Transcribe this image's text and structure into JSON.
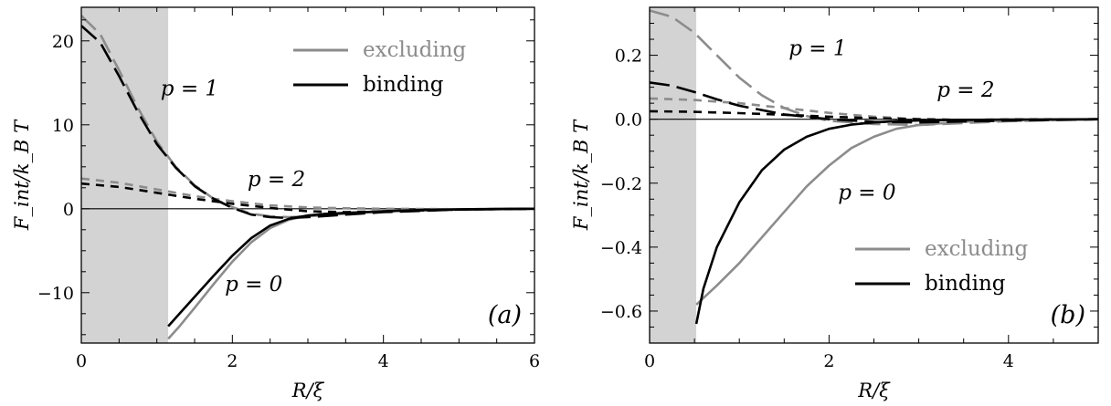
{
  "colors": {
    "excluding": "#8c8c8c",
    "binding": "#000000",
    "shade": "#d3d3d3",
    "axis": "#000000"
  },
  "chart_data": [
    {
      "type": "line",
      "panel_label": "(a)",
      "xlabel": "R/ξ",
      "ylabel": "F_int/k_B T",
      "xlim": [
        0,
        6
      ],
      "ylim": [
        -16,
        24
      ],
      "x_ticks": [
        0,
        2,
        4,
        6
      ],
      "y_ticks": [
        -10,
        0,
        10,
        20
      ],
      "shaded_region_x": [
        0,
        1.15
      ],
      "legend": {
        "position": "top-right",
        "entries": [
          {
            "label": "excluding",
            "color_key": "excluding"
          },
          {
            "label": "binding",
            "color_key": "binding"
          }
        ]
      },
      "annotations": [
        {
          "text": "p = 1",
          "x": 1.05,
          "y": 13.5
        },
        {
          "text": "p = 2",
          "x": 2.2,
          "y": 2.7
        },
        {
          "text": "p = 0",
          "x": 1.9,
          "y": -9.8
        }
      ],
      "series": [
        {
          "group": "excluding",
          "p": 1,
          "dash": "long",
          "x": [
            0,
            0.25,
            0.5,
            0.75,
            1.0,
            1.25,
            1.5,
            1.75,
            2.0,
            2.25,
            2.5,
            2.75,
            3.0,
            3.5,
            4.0,
            5.0,
            6.0
          ],
          "y": [
            23.0,
            20.8,
            16.5,
            12.0,
            8.0,
            5.0,
            2.8,
            1.2,
            0.2,
            -0.6,
            -0.9,
            -1.0,
            -0.9,
            -0.6,
            -0.3,
            -0.1,
            0.0
          ]
        },
        {
          "group": "binding",
          "p": 1,
          "dash": "long",
          "x": [
            0,
            0.25,
            0.5,
            0.75,
            1.0,
            1.25,
            1.5,
            1.75,
            2.0,
            2.25,
            2.5,
            2.75,
            3.0,
            3.5,
            4.0,
            5.0,
            6.0
          ],
          "y": [
            21.8,
            19.8,
            15.8,
            11.5,
            7.7,
            4.9,
            2.7,
            1.2,
            0.1,
            -0.7,
            -1.0,
            -1.1,
            -1.0,
            -0.7,
            -0.4,
            -0.1,
            0.0
          ]
        },
        {
          "group": "excluding",
          "p": 2,
          "dash": "short",
          "x": [
            0,
            0.5,
            1.0,
            1.5,
            2.0,
            2.5,
            3.0,
            3.5,
            4.0,
            5.0,
            6.0
          ],
          "y": [
            3.6,
            3.1,
            2.3,
            1.5,
            0.9,
            0.4,
            0.15,
            0.05,
            0.0,
            -0.05,
            0.0
          ]
        },
        {
          "group": "binding",
          "p": 2,
          "dash": "short",
          "x": [
            0,
            0.5,
            1.0,
            1.5,
            2.0,
            2.5,
            3.0,
            3.5,
            4.0,
            5.0,
            6.0
          ],
          "y": [
            3.0,
            2.6,
            1.9,
            1.2,
            0.6,
            0.1,
            -0.3,
            -0.4,
            -0.3,
            -0.1,
            0.0
          ]
        },
        {
          "group": "excluding",
          "p": 0,
          "dash": "solid",
          "x": [
            1.15,
            1.3,
            1.5,
            1.75,
            2.0,
            2.25,
            2.5,
            2.75,
            3.0,
            3.25,
            3.5,
            4.0,
            4.5,
            5.0,
            5.5,
            6.0
          ],
          "y": [
            -15.5,
            -14.0,
            -11.8,
            -9.0,
            -6.3,
            -4.0,
            -2.3,
            -1.3,
            -0.8,
            -0.6,
            -0.5,
            -0.3,
            -0.15,
            -0.08,
            -0.03,
            0.0
          ]
        },
        {
          "group": "binding",
          "p": 0,
          "dash": "solid",
          "x": [
            1.15,
            1.3,
            1.5,
            1.75,
            2.0,
            2.25,
            2.5,
            2.75,
            3.0,
            3.25,
            3.5,
            4.0,
            4.5,
            5.0,
            5.5,
            6.0
          ],
          "y": [
            -14.0,
            -12.5,
            -10.5,
            -8.0,
            -5.6,
            -3.5,
            -2.0,
            -1.2,
            -0.8,
            -0.6,
            -0.5,
            -0.3,
            -0.15,
            -0.08,
            -0.03,
            0.0
          ]
        }
      ]
    },
    {
      "type": "line",
      "panel_label": "(b)",
      "xlabel": "R/ξ",
      "ylabel": "F_int/k_B T",
      "xlim": [
        0,
        5
      ],
      "ylim": [
        -0.7,
        0.35
      ],
      "x_ticks": [
        0,
        2,
        4
      ],
      "y_ticks": [
        -0.6,
        -0.4,
        -0.2,
        0.0,
        0.2
      ],
      "shaded_region_x": [
        0,
        0.52
      ],
      "legend": {
        "position": "bottom-right",
        "entries": [
          {
            "label": "excluding",
            "color_key": "excluding"
          },
          {
            "label": "binding",
            "color_key": "binding"
          }
        ]
      },
      "annotations": [
        {
          "text": "p = 1",
          "x": 1.55,
          "y": 0.2
        },
        {
          "text": "p = 2",
          "x": 3.2,
          "y": 0.07
        },
        {
          "text": "p = 0",
          "x": 2.1,
          "y": -0.25
        }
      ],
      "series": [
        {
          "group": "excluding",
          "p": 1,
          "dash": "long",
          "x": [
            0,
            0.25,
            0.5,
            0.75,
            1.0,
            1.25,
            1.5,
            1.75,
            2.0,
            2.5,
            3.0,
            3.5,
            4.0,
            5.0
          ],
          "y": [
            0.34,
            0.32,
            0.27,
            0.2,
            0.13,
            0.075,
            0.035,
            0.01,
            -0.005,
            -0.015,
            -0.018,
            -0.012,
            -0.006,
            0.0
          ]
        },
        {
          "group": "binding",
          "p": 1,
          "dash": "long",
          "x": [
            0,
            0.25,
            0.5,
            0.75,
            1.0,
            1.5,
            2.0,
            2.5,
            3.0,
            3.5,
            4.0,
            5.0
          ],
          "y": [
            0.115,
            0.105,
            0.085,
            0.062,
            0.042,
            0.015,
            0.0,
            -0.008,
            -0.01,
            -0.007,
            -0.004,
            0.0
          ]
        },
        {
          "group": "excluding",
          "p": 2,
          "dash": "short",
          "x": [
            0,
            0.5,
            1.0,
            1.5,
            2.0,
            2.5,
            3.0,
            3.5,
            4.0,
            5.0
          ],
          "y": [
            0.065,
            0.06,
            0.05,
            0.035,
            0.02,
            0.008,
            0.0,
            -0.003,
            -0.002,
            0.0
          ]
        },
        {
          "group": "binding",
          "p": 2,
          "dash": "short",
          "x": [
            0,
            0.5,
            1.0,
            1.5,
            2.0,
            2.5,
            3.0,
            3.5,
            4.0,
            5.0
          ],
          "y": [
            0.025,
            0.023,
            0.019,
            0.014,
            0.008,
            0.003,
            0.0,
            -0.002,
            -0.001,
            0.0
          ]
        },
        {
          "group": "excluding",
          "p": 0,
          "dash": "solid",
          "x": [
            0.52,
            0.75,
            1.0,
            1.25,
            1.5,
            1.75,
            2.0,
            2.25,
            2.5,
            2.75,
            3.0,
            3.5,
            4.0,
            4.5,
            5.0
          ],
          "y": [
            -0.58,
            -0.52,
            -0.45,
            -0.37,
            -0.29,
            -0.21,
            -0.145,
            -0.09,
            -0.055,
            -0.03,
            -0.018,
            -0.008,
            -0.004,
            -0.002,
            0.0
          ]
        },
        {
          "group": "binding",
          "p": 0,
          "dash": "solid",
          "x": [
            0.52,
            0.6,
            0.75,
            1.0,
            1.25,
            1.5,
            1.75,
            2.0,
            2.25,
            2.5,
            2.75,
            3.0,
            3.5,
            4.0,
            5.0
          ],
          "y": [
            -0.64,
            -0.53,
            -0.4,
            -0.26,
            -0.16,
            -0.095,
            -0.055,
            -0.03,
            -0.017,
            -0.01,
            -0.006,
            -0.004,
            -0.002,
            -0.001,
            0.0
          ]
        }
      ]
    }
  ]
}
